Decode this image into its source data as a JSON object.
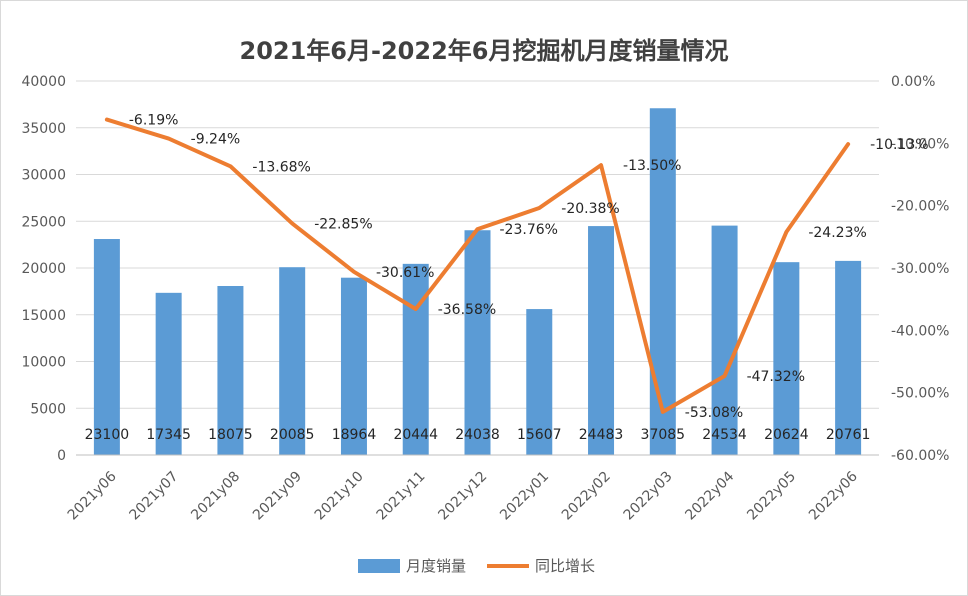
{
  "chart_data": {
    "type": "bar+line",
    "title": "2021年6月-2022年6月挖掘机月度销量情况",
    "categories": [
      "2021y06",
      "2021y07",
      "2021y08",
      "2021y09",
      "2021y10",
      "2021y11",
      "2021y12",
      "2022y01",
      "2022y02",
      "2022y03",
      "2022y04",
      "2022y05",
      "2022y06"
    ],
    "series": [
      {
        "name": "月度销量",
        "type": "bar",
        "axis": "left",
        "color": "#5b9bd5",
        "values": [
          23100,
          17345,
          18075,
          20085,
          18964,
          20444,
          24038,
          15607,
          24483,
          37085,
          24534,
          20624,
          20761
        ]
      },
      {
        "name": "同比增长",
        "type": "line",
        "axis": "right",
        "color": "#ed7d31",
        "values": [
          -6.19,
          -9.24,
          -13.68,
          -22.85,
          -30.61,
          -36.58,
          -23.76,
          -20.38,
          -13.5,
          -53.08,
          -47.32,
          -24.23,
          -10.13
        ],
        "labels": [
          "-6.19%",
          "-9.24%",
          "-13.68%",
          "-22.85%",
          "-30.61%",
          "-36.58%",
          "-23.76%",
          "-20.38%",
          "-13.50%",
          "-53.08%",
          "-47.32%",
          "-24.23%",
          "-10.13%"
        ]
      }
    ],
    "y_left": {
      "min": 0,
      "max": 40000,
      "step": 5000,
      "ticks": [
        "0",
        "5000",
        "10000",
        "15000",
        "20000",
        "25000",
        "30000",
        "35000",
        "40000"
      ]
    },
    "y_right": {
      "min": -60,
      "max": 0,
      "step": 10,
      "ticks": [
        "-60.00%",
        "-50.00%",
        "-40.00%",
        "-30.00%",
        "-20.00%",
        "-10.00%",
        "0.00%"
      ]
    },
    "grid": true,
    "legend": {
      "position": "bottom",
      "items": [
        "月度销量",
        "同比增长"
      ]
    }
  }
}
